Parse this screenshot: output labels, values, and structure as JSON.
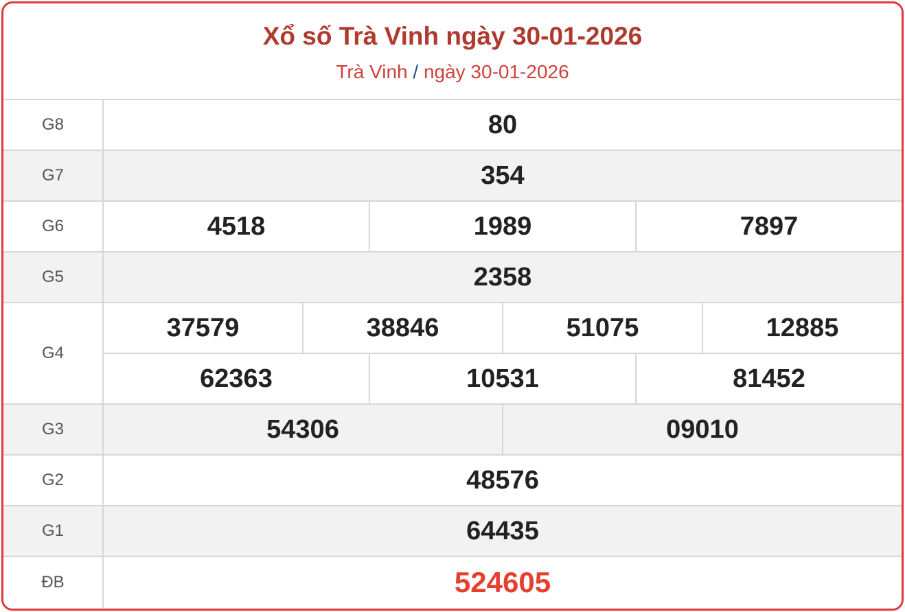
{
  "header": {
    "title": "Xổ số Trà Vinh ngày 30-01-2026",
    "breadcrumb": {
      "province": "Trà Vinh",
      "separator": "/",
      "date": "ngày 30-01-2026"
    }
  },
  "colors": {
    "border": "#e0393a",
    "title": "#b03a2e",
    "special": "#e5402f",
    "alt_row": "#f2f2f2"
  },
  "prizes": [
    {
      "label": "G8",
      "rows": [
        [
          "80"
        ]
      ]
    },
    {
      "label": "G7",
      "rows": [
        [
          "354"
        ]
      ]
    },
    {
      "label": "G6",
      "rows": [
        [
          "4518",
          "1989",
          "7897"
        ]
      ]
    },
    {
      "label": "G5",
      "rows": [
        [
          "2358"
        ]
      ]
    },
    {
      "label": "G4",
      "rows": [
        [
          "37579",
          "38846",
          "51075",
          "12885"
        ],
        [
          "62363",
          "10531",
          "81452"
        ]
      ]
    },
    {
      "label": "G3",
      "rows": [
        [
          "54306",
          "09010"
        ]
      ]
    },
    {
      "label": "G2",
      "rows": [
        [
          "48576"
        ]
      ]
    },
    {
      "label": "G1",
      "rows": [
        [
          "64435"
        ]
      ]
    },
    {
      "label": "ĐB",
      "rows": [
        [
          "524605"
        ]
      ]
    }
  ]
}
